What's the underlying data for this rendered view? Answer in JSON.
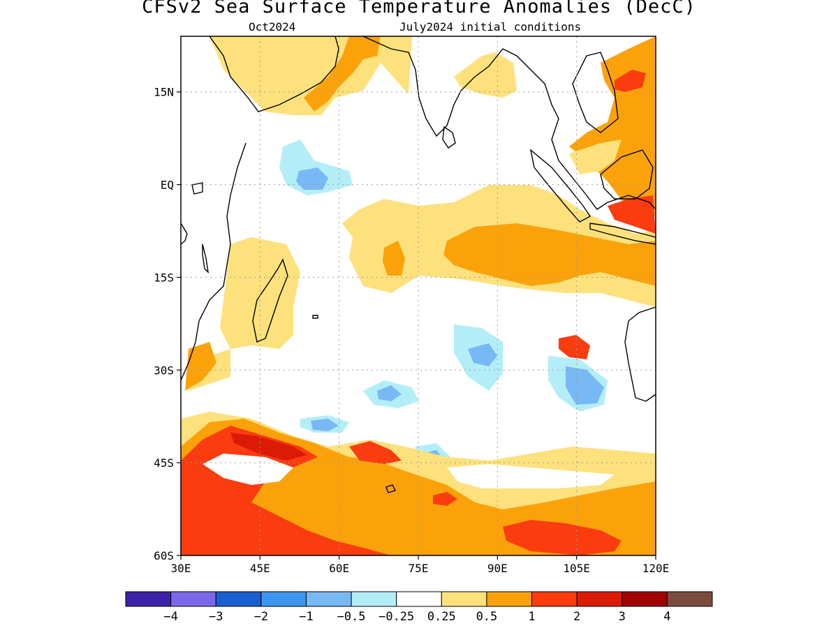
{
  "title": "CFSv2 Sea Surface Temperature Anomalies (DecC)",
  "subtitle_left": "Oct2024",
  "subtitle_right": "July2024 initial conditions",
  "map": {
    "lon_range": [
      30,
      120
    ],
    "lat_range": [
      -60,
      24
    ],
    "x_ticks": [
      {
        "lon": 30,
        "label": "30E"
      },
      {
        "lon": 45,
        "label": "45E"
      },
      {
        "lon": 60,
        "label": "60E"
      },
      {
        "lon": 75,
        "label": "75E"
      },
      {
        "lon": 90,
        "label": "90E"
      },
      {
        "lon": 105,
        "label": "105E"
      },
      {
        "lon": 120,
        "label": "120E"
      }
    ],
    "y_ticks": [
      {
        "lat": 15,
        "label": "15N"
      },
      {
        "lat": 0,
        "label": "EQ"
      },
      {
        "lat": -15,
        "label": "15S"
      },
      {
        "lat": -30,
        "label": "30S"
      },
      {
        "lat": -45,
        "label": "45S"
      },
      {
        "lat": -60,
        "label": "60S"
      }
    ],
    "grid": true
  },
  "colorbar": {
    "colors": [
      "#3b22a8",
      "#7b68e8",
      "#1a5fd0",
      "#3c96f0",
      "#78b8f5",
      "#b3eef8",
      "#ffffff",
      "#fde17c",
      "#fba20a",
      "#fa3c0f",
      "#dc1b06",
      "#a10303",
      "#7b4b3c"
    ],
    "labels": [
      "−4",
      "−3",
      "−2",
      "−1",
      "−0.5",
      "−0.25",
      "0.25",
      "0.5",
      "1",
      "2",
      "3",
      "4"
    ]
  }
}
